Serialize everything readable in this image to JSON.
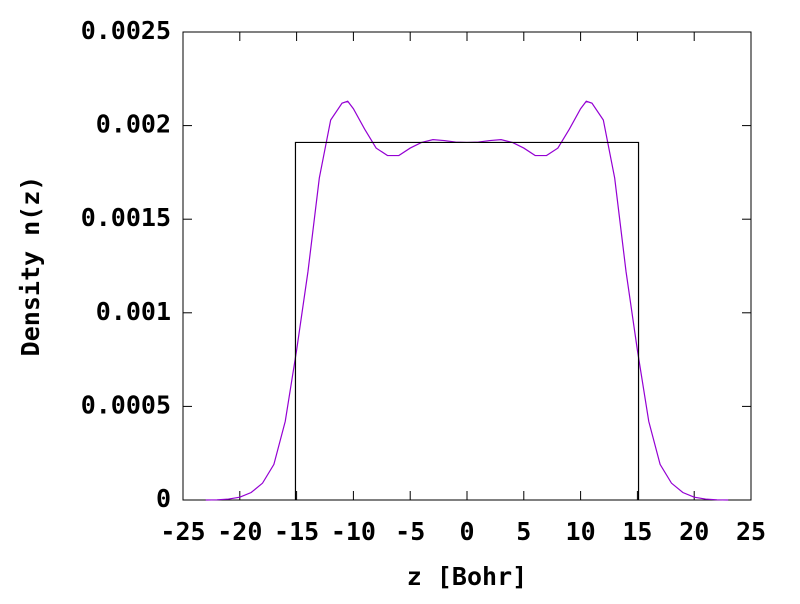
{
  "chart_data": {
    "type": "line",
    "xlabel": "z [Bohr]",
    "ylabel": "Density n(z)",
    "xlim": [
      -25,
      25
    ],
    "ylim": [
      0,
      0.0025
    ],
    "xticks": [
      -25,
      -20,
      -15,
      -10,
      -5,
      0,
      5,
      10,
      15,
      20,
      25
    ],
    "yticks": [
      0,
      0.0005,
      0.001,
      0.0015,
      0.002,
      0.0025
    ],
    "series": [
      {
        "color": "#9400d3",
        "x": [
          -23,
          -22,
          -21,
          -20,
          -19,
          -18,
          -17,
          -16,
          -15,
          -14,
          -13,
          -12,
          -11,
          -10.5,
          -10,
          -9,
          -8,
          -7,
          -6,
          -5,
          -4,
          -3,
          -2,
          -1,
          0,
          1,
          2,
          3,
          4,
          5,
          6,
          7,
          8,
          9,
          10,
          10.5,
          11,
          12,
          13,
          14,
          15,
          16,
          17,
          18,
          19,
          20,
          21,
          22,
          23
        ],
        "values": [
          0,
          1e-06,
          5e-06,
          1.5e-05,
          4e-05,
          9e-05,
          0.00019,
          0.00042,
          0.0008,
          0.00122,
          0.00172,
          0.00203,
          0.00212,
          0.00213,
          0.00209,
          0.00198,
          0.00188,
          0.00184,
          0.00184,
          0.00188,
          0.00191,
          0.001925,
          0.00192,
          0.001912,
          0.00191,
          0.001912,
          0.00192,
          0.001925,
          0.00191,
          0.00188,
          0.00184,
          0.00184,
          0.00188,
          0.00198,
          0.00209,
          0.00213,
          0.00212,
          0.00203,
          0.00172,
          0.00122,
          0.0008,
          0.00042,
          0.00019,
          9e-05,
          4e-05,
          1.5e-05,
          5e-06,
          1e-06,
          0
        ]
      },
      {
        "color": "#000000",
        "x": [
          -15.1,
          -15.1,
          15.1,
          15.1
        ],
        "values": [
          0,
          0.00191,
          0.00191,
          0
        ]
      }
    ]
  }
}
